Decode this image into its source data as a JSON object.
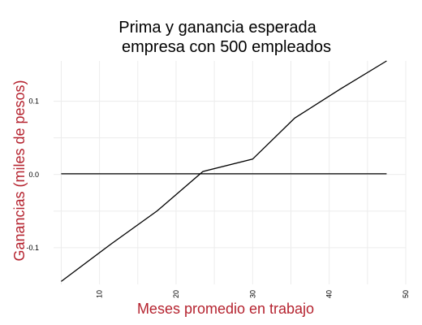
{
  "chart_data": {
    "type": "line",
    "title_lines": [
      "Prima y ganancia esperada",
      "empresa con 500 empleados"
    ],
    "xlabel": "Meses promedio en trabajo",
    "ylabel": "Ganancias (miles de pesos)",
    "xlim": [
      4,
      50
    ],
    "ylim": [
      -0.15,
      0.155
    ],
    "x_ticks": [
      10,
      20,
      30,
      40,
      50
    ],
    "x_tick_labels": [
      "10",
      "20",
      "30",
      "40",
      "50"
    ],
    "y_ticks": [
      -0.1,
      0.0,
      0.1
    ],
    "y_tick_labels": [
      "-0.1",
      "0.0",
      "0.1"
    ],
    "grid": true,
    "label_color": "#b5232f",
    "series": [
      {
        "color": "#000000",
        "x": [
          5,
          11.5,
          17.5,
          23.5,
          30,
          35.5,
          41.5,
          47.5
        ],
        "y": [
          -0.146,
          -0.095,
          -0.05,
          0.004,
          0.021,
          0.077,
          0.117,
          0.155
        ]
      },
      {
        "color": "#000000",
        "x": [
          5,
          47.5
        ],
        "y": [
          0.001,
          0.001
        ]
      }
    ]
  }
}
